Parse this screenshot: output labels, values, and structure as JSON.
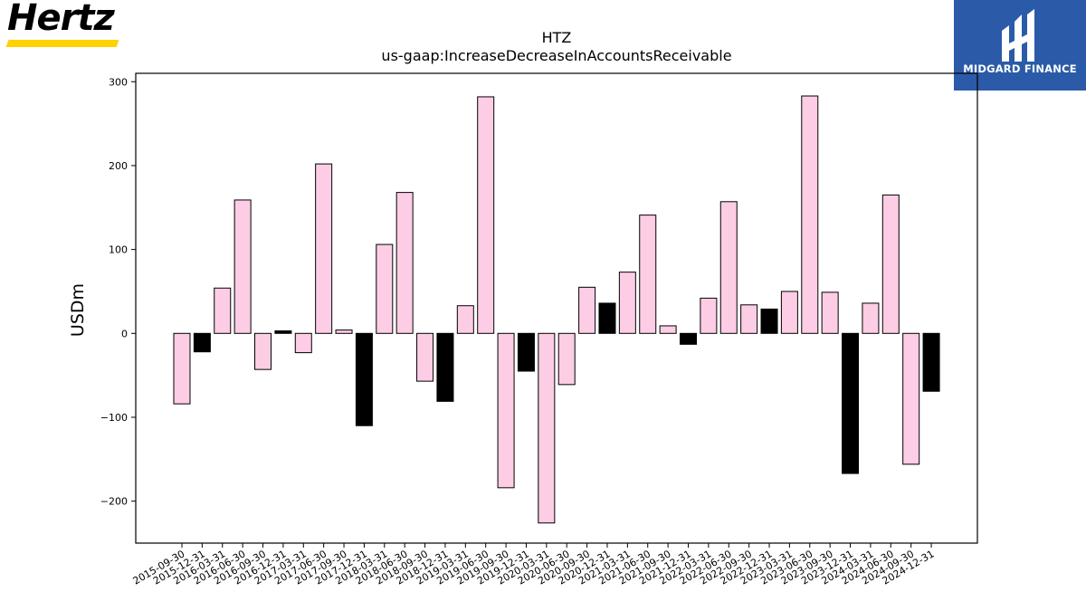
{
  "logos": {
    "left_text": "Hertz",
    "right_text": "MIDGARD FINANCE"
  },
  "chart_data": {
    "type": "bar",
    "title": "HTZ",
    "subtitle": "us-gaap:IncreaseDecreaseInAccountsReceivable",
    "xlabel": "",
    "ylabel": "USDm",
    "ylim": [
      -250,
      310
    ],
    "yticks": [
      -200,
      -100,
      0,
      100,
      200,
      300
    ],
    "ytick_labels": [
      "−200",
      "−100",
      "0",
      "100",
      "200",
      "300"
    ],
    "grid": false,
    "colors": {
      "default": "#fccde5",
      "q4": "#000000",
      "edge": "#000000"
    },
    "categories": [
      "2015-09-30",
      "2015-12-31",
      "2016-03-31",
      "2016-06-30",
      "2016-09-30",
      "2016-12-31",
      "2017-03-31",
      "2017-06-30",
      "2017-09-30",
      "2017-12-31",
      "2018-03-31",
      "2018-06-30",
      "2018-09-30",
      "2018-12-31",
      "2019-03-31",
      "2019-06-30",
      "2019-09-30",
      "2019-12-31",
      "2020-03-31",
      "2020-06-30",
      "2020-09-30",
      "2020-12-31",
      "2021-03-31",
      "2021-06-30",
      "2021-09-30",
      "2021-12-31",
      "2022-03-31",
      "2022-06-30",
      "2022-09-30",
      "2022-12-31",
      "2023-03-31",
      "2023-06-30",
      "2023-09-30",
      "2023-12-31",
      "2024-03-31",
      "2024-06-30",
      "2024-09-30",
      "2024-12-31"
    ],
    "values": [
      -84,
      -22,
      54,
      159,
      -43,
      3,
      -23,
      202,
      4,
      -110,
      106,
      168,
      -57,
      -81,
      33,
      282,
      -184,
      -45,
      -226,
      -61,
      55,
      36,
      73,
      141,
      9,
      -13,
      42,
      157,
      34,
      29,
      50,
      283,
      49,
      -167,
      36,
      165,
      -156,
      -69
    ],
    "q4_flags": [
      false,
      true,
      false,
      false,
      false,
      true,
      false,
      false,
      false,
      true,
      false,
      false,
      false,
      true,
      false,
      false,
      false,
      true,
      false,
      false,
      false,
      true,
      false,
      false,
      false,
      true,
      false,
      false,
      false,
      true,
      false,
      false,
      false,
      true,
      false,
      false,
      false,
      true
    ]
  }
}
